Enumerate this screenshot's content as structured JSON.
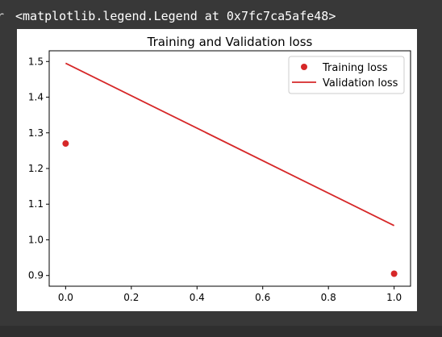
{
  "output": {
    "prompt_glyph": "r",
    "repr_text": "<matplotlib.legend.Legend at 0x7fc7ca5afe48>"
  },
  "chart_data": {
    "type": "line",
    "title": "Training and Validation loss",
    "xlabel": "",
    "ylabel": "",
    "xlim": [
      -0.05,
      1.05
    ],
    "ylim": [
      0.87,
      1.53
    ],
    "xticks": [
      0.0,
      0.2,
      0.4,
      0.6,
      0.8,
      1.0
    ],
    "xtick_labels": [
      "0.0",
      "0.2",
      "0.4",
      "0.6",
      "0.8",
      "1.0"
    ],
    "yticks": [
      0.9,
      1.0,
      1.1,
      1.2,
      1.3,
      1.4,
      1.5
    ],
    "ytick_labels": [
      "0.9",
      "1.0",
      "1.1",
      "1.2",
      "1.3",
      "1.4",
      "1.5"
    ],
    "grid": false,
    "legend_position": "top-right",
    "series": [
      {
        "name": "Training loss",
        "style": "markers",
        "color": "#d62728",
        "x": [
          0.0,
          1.0
        ],
        "y": [
          1.27,
          0.905
        ]
      },
      {
        "name": "Validation loss",
        "style": "line",
        "color": "#d62728",
        "x": [
          0.0,
          1.0
        ],
        "y": [
          1.495,
          1.04
        ]
      }
    ]
  }
}
